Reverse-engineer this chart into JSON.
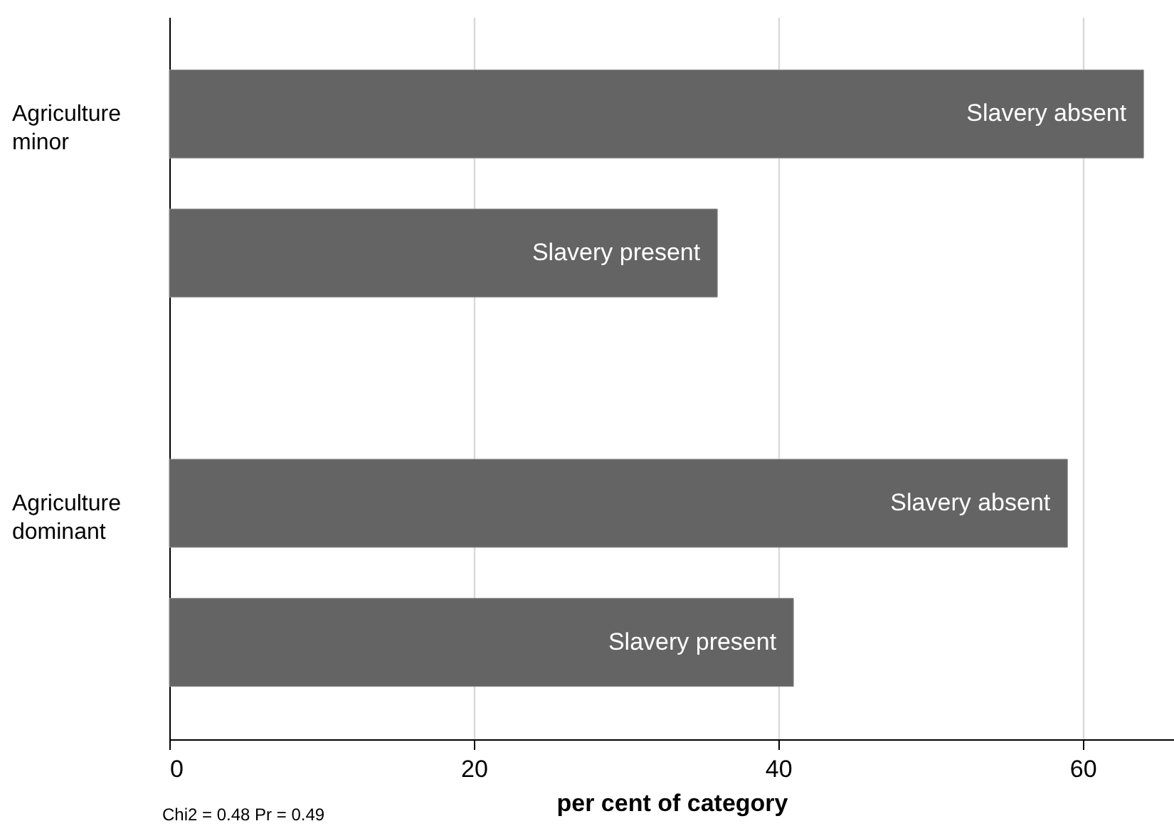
{
  "chart_data": {
    "type": "bar",
    "orientation": "horizontal",
    "categories": [
      "Agriculture minor",
      "Agriculture dominant"
    ],
    "series": [
      {
        "name": "Slavery absent",
        "color": "#646464",
        "values": [
          64,
          59
        ]
      },
      {
        "name": "Slavery present",
        "color": "#646464",
        "values": [
          36,
          41
        ]
      }
    ],
    "xlim": [
      0,
      66
    ],
    "xticks": [
      0,
      20,
      40,
      60
    ],
    "xlabel": "per cent of category",
    "grid": "x",
    "annotations": [
      "Chi2 = 0.48  Pr = 0.49"
    ]
  }
}
